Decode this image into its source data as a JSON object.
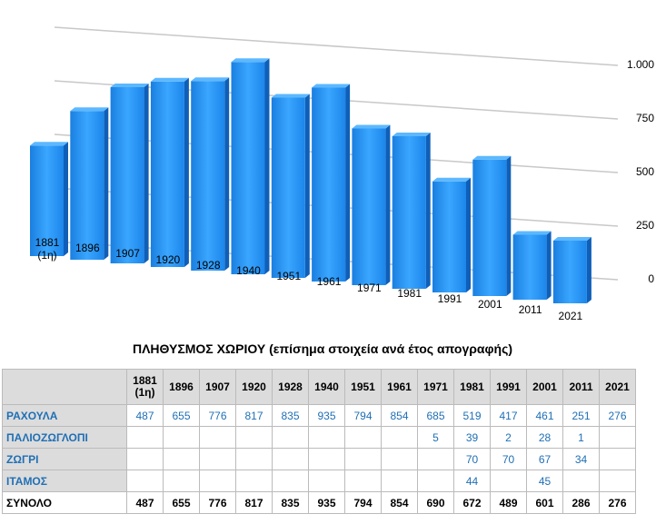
{
  "chart_data": {
    "type": "bar3d",
    "categories": [
      "1881 (1η)",
      "1896",
      "1907",
      "1920",
      "1928",
      "1940",
      "1951",
      "1961",
      "1971",
      "1981",
      "1991",
      "2001",
      "2011",
      "2021"
    ],
    "values": [
      487,
      655,
      776,
      817,
      835,
      935,
      794,
      854,
      690,
      672,
      489,
      601,
      286,
      276
    ],
    "color": "#1e90f0",
    "ylim": [
      0,
      1000
    ],
    "yticks": [
      0,
      250,
      500,
      750,
      {
        "value": 1000,
        "label": "1.000"
      }
    ],
    "grid": true
  },
  "table": {
    "title": "ΠΛΗΘΥΣΜΟΣ ΧΩΡΙΟΥ (επίσημα στοιχεία ανά έτος απογραφής)",
    "columns": [
      "1881 (1η)",
      "1896",
      "1907",
      "1920",
      "1928",
      "1940",
      "1951",
      "1961",
      "1971",
      "1981",
      "1991",
      "2001",
      "2011",
      "2021"
    ],
    "rows": [
      {
        "name": "ΡΑΧΟΥΛΑ",
        "values": [
          487,
          655,
          776,
          817,
          835,
          935,
          794,
          854,
          685,
          519,
          417,
          461,
          251,
          276
        ]
      },
      {
        "name": "ΠΑΛΙΟΖΩΓΛΟΠΙ",
        "values": [
          null,
          null,
          null,
          null,
          null,
          null,
          null,
          null,
          5,
          39,
          2,
          28,
          1,
          null
        ]
      },
      {
        "name": "ΖΩΓΡΙ",
        "values": [
          null,
          null,
          null,
          null,
          null,
          null,
          null,
          null,
          null,
          70,
          70,
          67,
          34,
          null
        ]
      },
      {
        "name": "ΙΤΑΜΟΣ",
        "values": [
          null,
          null,
          null,
          null,
          null,
          null,
          null,
          null,
          null,
          44,
          null,
          45,
          null,
          null
        ]
      },
      {
        "name": "ΣΥΝΟΛΟ",
        "values": [
          487,
          655,
          776,
          817,
          835,
          935,
          794,
          854,
          690,
          672,
          489,
          601,
          286,
          276
        ]
      }
    ]
  }
}
